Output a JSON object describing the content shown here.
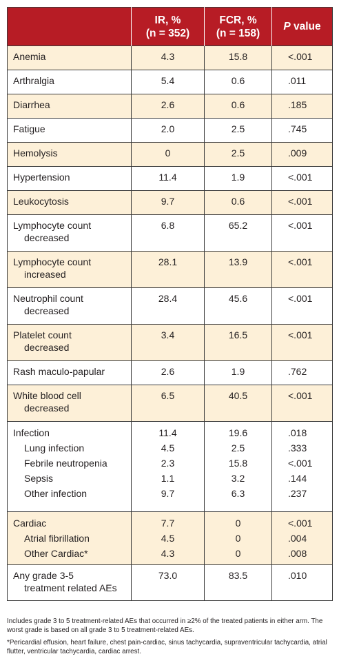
{
  "headers": {
    "ir_line1": "IR, %",
    "ir_line2": "(n = 352)",
    "fcr_line1": "FCR, %",
    "fcr_line2": "(n = 158)",
    "p_label_italic": "P",
    "p_label_rest": " value"
  },
  "rows": [
    {
      "label": "Anemia",
      "label2": "",
      "ir": "4.3",
      "fcr": "15.8",
      "p": "<.001"
    },
    {
      "label": "Arthralgia",
      "label2": "",
      "ir": "5.4",
      "fcr": "0.6",
      "p": ".011"
    },
    {
      "label": "Diarrhea",
      "label2": "",
      "ir": "2.6",
      "fcr": "0.6",
      "p": ".185"
    },
    {
      "label": "Fatigue",
      "label2": "",
      "ir": "2.0",
      "fcr": "2.5",
      "p": ".745"
    },
    {
      "label": "Hemolysis",
      "label2": "",
      "ir": "0",
      "fcr": "2.5",
      "p": ".009"
    },
    {
      "label": "Hypertension",
      "label2": "",
      "ir": "11.4",
      "fcr": "1.9",
      "p": "<.001"
    },
    {
      "label": "Leukocytosis",
      "label2": "",
      "ir": "9.7",
      "fcr": "0.6",
      "p": "<.001"
    },
    {
      "label": "Lymphocyte count",
      "label2": "decreased",
      "ir": "6.8",
      "fcr": "65.2",
      "p": "<.001"
    },
    {
      "label": "Lymphocyte count",
      "label2": "increased",
      "ir": "28.1",
      "fcr": "13.9",
      "p": "<.001"
    },
    {
      "label": "Neutrophil count",
      "label2": "decreased",
      "ir": "28.4",
      "fcr": "45.6",
      "p": "<.001"
    },
    {
      "label": "Platelet count",
      "label2": "decreased",
      "ir": "3.4",
      "fcr": "16.5",
      "p": "<.001"
    },
    {
      "label": "Rash maculo-papular",
      "label2": "",
      "ir": "2.6",
      "fcr": "1.9",
      "p": ".762"
    },
    {
      "label": "White blood cell",
      "label2": "decreased",
      "ir": "6.5",
      "fcr": "40.5",
      "p": "<.001"
    }
  ],
  "infection": {
    "items": [
      {
        "label": "Infection",
        "ir": "11.4",
        "fcr": "19.6",
        "p": ".018"
      },
      {
        "label": "Lung infection",
        "ir": "4.5",
        "fcr": "2.5",
        "p": ".333"
      },
      {
        "label": "Febrile neutropenia",
        "ir": "2.3",
        "fcr": "15.8",
        "p": "<.001"
      },
      {
        "label": "Sepsis",
        "ir": "1.1",
        "fcr": "3.2",
        "p": ".144"
      },
      {
        "label": "Other infection",
        "ir": "9.7",
        "fcr": "6.3",
        "p": ".237"
      }
    ]
  },
  "cardiac": {
    "items": [
      {
        "label": "Cardiac",
        "ir": "7.7",
        "fcr": "0",
        "p": "<.001"
      },
      {
        "label": "Atrial fibrillation",
        "ir": "4.5",
        "fcr": "0",
        "p": ".004"
      },
      {
        "label": "Other Cardiac*",
        "ir": "4.3",
        "fcr": "0",
        "p": ".008"
      }
    ]
  },
  "any_grade": {
    "label": "Any grade 3-5",
    "label2": "treatment related AEs",
    "ir": "73.0",
    "fcr": "83.5",
    "p": ".010"
  },
  "notes": {
    "note1": "Includes grade 3 to 5 treatment-related AEs that occurred in ≥2% of the treated patients in either arm. The worst grade is based on all grade 3 to 5 treatment-related AEs.",
    "note2": "*Pericardial effusion, heart failure, chest pain-cardiac, sinus tachycardia, supraventricular tachycardia, atrial flutter, ventricular tachycardia, cardiac arrest."
  },
  "colors": {
    "header_bg": "#b71c25",
    "shade_bg": "#fdf0d8",
    "border": "#3a3a3a"
  }
}
